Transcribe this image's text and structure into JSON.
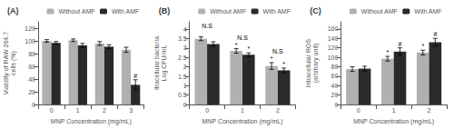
{
  "chart_data": [
    {
      "type": "bar",
      "title": "(A)",
      "xlabel": "MNP Concentration (mg/mL)",
      "ylabel": "Viability of RAW 264.7\ncells (%)",
      "categories": [
        "0",
        "1",
        "2",
        "3"
      ],
      "series": [
        {
          "name": "Without AMF",
          "color": "#b0b0b0",
          "values": [
            100,
            101,
            96,
            86
          ],
          "errors": [
            2,
            2,
            3,
            4
          ]
        },
        {
          "name": "With AMF",
          "color": "#2a2a2a",
          "values": [
            97,
            93,
            91,
            31
          ],
          "errors": [
            2,
            3,
            3,
            8
          ]
        }
      ],
      "ylim": [
        0,
        130
      ],
      "yticks": [
        0,
        20,
        40,
        60,
        80,
        100,
        120
      ],
      "grid": false,
      "legend": "upper right",
      "annotations": [
        {
          "text": "#",
          "category": "3",
          "series": "With AMF"
        }
      ]
    },
    {
      "type": "bar",
      "title": "(B)",
      "xlabel": "MNP Concentration (mg/mL)",
      "ylabel": "Itracellular bacteria\nLog CFU/mL",
      "categories": [
        "0",
        "1",
        "2"
      ],
      "series": [
        {
          "name": "Without AMF",
          "color": "#b0b0b0",
          "values": [
            3.5,
            2.85,
            2.05
          ],
          "errors": [
            0.1,
            0.12,
            0.18
          ]
        },
        {
          "name": "With AMF",
          "color": "#2a2a2a",
          "values": [
            3.22,
            2.65,
            1.82
          ],
          "errors": [
            0.12,
            0.1,
            0.12
          ]
        }
      ],
      "ylim": [
        0,
        4.4
      ],
      "yticks": [
        0,
        0.5,
        1,
        1.5,
        2,
        2.5,
        3,
        3.5,
        4
      ],
      "grid": false,
      "legend": "upper right",
      "annotations": [
        {
          "text": "N.S",
          "category": "0"
        },
        {
          "text": "*",
          "category": "1",
          "series": "Without AMF"
        },
        {
          "text": "N.S",
          "category": "1"
        },
        {
          "text": "*",
          "category": "1",
          "series": "With AMF"
        },
        {
          "text": "*",
          "category": "2",
          "series": "Without AMF"
        },
        {
          "text": "N.S",
          "category": "2"
        },
        {
          "text": "*",
          "category": "2",
          "series": "With AMF"
        }
      ]
    },
    {
      "type": "bar",
      "title": "(C)",
      "xlabel": "MNP Concentration (mg/mL)",
      "ylabel": "Intracellular ROS\n(arbitrary unit)",
      "categories": [
        "0",
        "1",
        "2"
      ],
      "series": [
        {
          "name": "Without AMF",
          "color": "#b0b0b0",
          "values": [
            75,
            97,
            110
          ],
          "errors": [
            5,
            5,
            5
          ]
        },
        {
          "name": "With AMF",
          "color": "#2a2a2a",
          "values": [
            76,
            112,
            132
          ],
          "errors": [
            5,
            8,
            8
          ]
        }
      ],
      "ylim": [
        0,
        175
      ],
      "yticks": [
        0,
        20,
        40,
        60,
        80,
        100,
        120,
        140,
        160
      ],
      "grid": false,
      "legend": "upper right",
      "annotations": [
        {
          "text": "*",
          "category": "1",
          "series": "Without AMF"
        },
        {
          "text": "#",
          "category": "1",
          "series": "With AMF"
        },
        {
          "text": "*",
          "category": "2",
          "series": "Without AMF"
        },
        {
          "text": "#",
          "category": "2",
          "series": "With AMF"
        }
      ]
    }
  ]
}
